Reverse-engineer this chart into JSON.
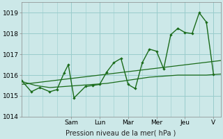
{
  "xlabel": "Pression niveau de la mer( hPa )",
  "bg_color": "#cce8e8",
  "grid_color": "#99cccc",
  "line_color": "#1a6b1a",
  "ylim": [
    1014,
    1019.5
  ],
  "xlim": [
    0,
    14
  ],
  "yticks": [
    1014,
    1015,
    1016,
    1017,
    1018,
    1019
  ],
  "day_labels": [
    "Sam",
    "Lun",
    "Mar",
    "Mer",
    "Jeu",
    "V"
  ],
  "day_positions": [
    3.5,
    5.5,
    7.5,
    9.5,
    11.5,
    13.5
  ],
  "vline_positions": [
    3.5,
    5.5,
    7.5,
    9.5,
    11.5,
    13.5
  ],
  "minor_vline_positions": [
    0.5,
    1.5,
    2.5,
    4.5,
    6.5,
    8.5,
    10.5,
    12.5
  ],
  "trend_x": [
    0,
    14
  ],
  "trend_y": [
    1015.55,
    1016.7
  ],
  "smooth_x": [
    0,
    1,
    2,
    3,
    4,
    5,
    6,
    7,
    8,
    9,
    10,
    11,
    12,
    13,
    14
  ],
  "smooth_y": [
    1015.7,
    1015.5,
    1015.4,
    1015.45,
    1015.5,
    1015.55,
    1015.6,
    1015.7,
    1015.8,
    1015.9,
    1015.95,
    1016.0,
    1016.0,
    1016.0,
    1016.05
  ],
  "main_x": [
    0,
    0.7,
    1.3,
    2.0,
    2.5,
    3.0,
    3.3,
    3.7,
    4.5,
    5.0,
    5.5,
    6.0,
    6.5,
    7.0,
    7.5,
    8.0,
    8.5,
    9.0,
    9.5,
    10.0,
    10.5,
    11.0,
    11.5,
    12.0,
    12.5,
    13.0,
    13.5
  ],
  "main_y": [
    1015.75,
    1015.2,
    1015.4,
    1015.2,
    1015.3,
    1016.1,
    1016.5,
    1014.9,
    1015.45,
    1015.5,
    1015.55,
    1016.15,
    1016.6,
    1016.8,
    1015.55,
    1015.35,
    1016.6,
    1017.25,
    1017.15,
    1016.3,
    1017.95,
    1018.25,
    1018.05,
    1018.0,
    1019.0,
    1018.55,
    1016.05
  ]
}
